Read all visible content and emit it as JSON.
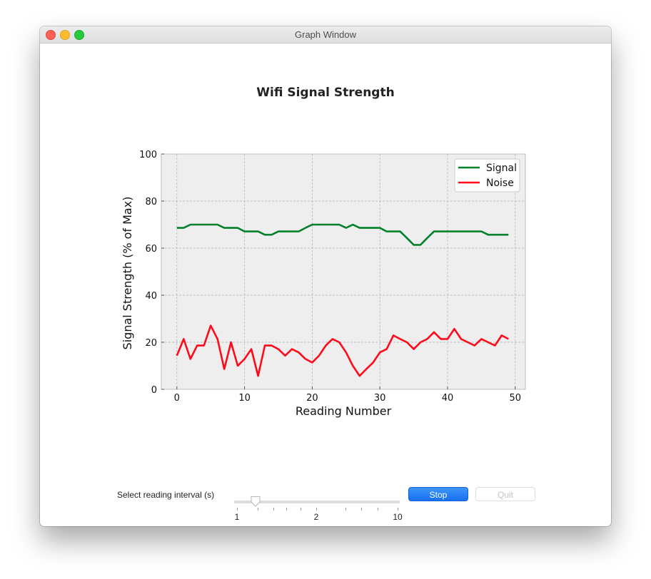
{
  "window": {
    "title": "Graph Window"
  },
  "colors": {
    "signal": "#00802b",
    "noise": "#ff0a1a",
    "plot_bg": "#eeeeee",
    "grid": "#b0b0b0"
  },
  "chart_data": {
    "type": "line",
    "title": "Wifi Signal Strength",
    "xlabel": "Reading Number",
    "ylabel": "Signal Strength (% of Max)",
    "xlim": [
      -2.3,
      51.5
    ],
    "ylim": [
      0,
      100
    ],
    "xticks": [
      0,
      10,
      20,
      30,
      40,
      50
    ],
    "yticks": [
      0,
      20,
      40,
      60,
      80,
      100
    ],
    "grid": true,
    "legend_position": "top-right",
    "x": [
      0,
      1,
      2,
      3,
      4,
      5,
      6,
      7,
      8,
      9,
      10,
      11,
      12,
      13,
      14,
      15,
      16,
      17,
      18,
      19,
      20,
      21,
      22,
      23,
      24,
      25,
      26,
      27,
      28,
      29,
      30,
      31,
      32,
      33,
      34,
      35,
      36,
      37,
      38,
      39,
      40,
      41,
      42,
      43,
      44,
      45,
      46,
      47,
      48,
      49
    ],
    "series": [
      {
        "name": "Signal",
        "color": "#00802b",
        "values": [
          68.6,
          68.6,
          70,
          70,
          70,
          70,
          70,
          68.6,
          68.6,
          68.6,
          67.1,
          67.1,
          67.1,
          65.7,
          65.7,
          67.1,
          67.1,
          67.1,
          67.1,
          68.6,
          70,
          70,
          70,
          70,
          70,
          68.6,
          70,
          68.6,
          68.6,
          68.6,
          68.6,
          67.1,
          67.1,
          67.1,
          64.3,
          61.4,
          61.4,
          64.3,
          67.1,
          67.1,
          67.1,
          67.1,
          67.1,
          67.1,
          67.1,
          67.1,
          65.7,
          65.7,
          65.7,
          65.7
        ]
      },
      {
        "name": "Noise",
        "color": "#ff0a1a",
        "values": [
          14.3,
          21.4,
          12.9,
          18.6,
          18.6,
          27.1,
          21.4,
          8.6,
          20,
          10,
          12.9,
          17.1,
          5.7,
          18.6,
          18.6,
          17.1,
          14.3,
          17.1,
          15.7,
          12.9,
          11.4,
          14.3,
          18.6,
          21.4,
          20,
          15.7,
          10,
          5.7,
          8.6,
          11.4,
          15.7,
          17.1,
          22.9,
          21.4,
          20,
          17.1,
          20,
          21.4,
          24.3,
          21.4,
          21.4,
          25.7,
          21.4,
          20,
          18.6,
          21.4,
          20,
          18.6,
          22.9,
          21.4
        ]
      }
    ]
  },
  "controls": {
    "interval_label": "Select reading interval (s)",
    "slider_ticks": [
      "1",
      "2",
      "10"
    ],
    "stop_label": "Stop",
    "quit_label": "Quit"
  }
}
